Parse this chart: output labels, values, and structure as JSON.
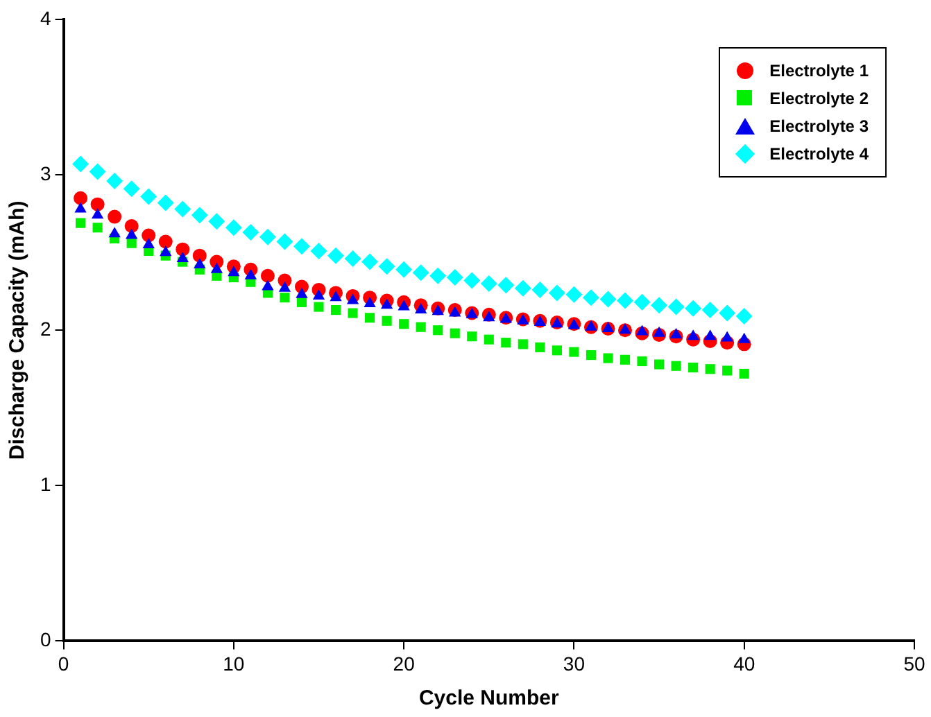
{
  "chart_data": {
    "type": "scatter",
    "xlabel": "Cycle Number",
    "ylabel": "Discharge Capacity (mAh)",
    "x": [
      1,
      2,
      3,
      4,
      5,
      6,
      7,
      8,
      9,
      10,
      11,
      12,
      13,
      14,
      15,
      16,
      17,
      18,
      19,
      20,
      21,
      22,
      23,
      24,
      25,
      26,
      27,
      28,
      29,
      30,
      31,
      32,
      33,
      34,
      35,
      36,
      37,
      38,
      39,
      40
    ],
    "xlim": [
      0,
      50
    ],
    "xticks": [
      0,
      10,
      20,
      30,
      40,
      50
    ],
    "ylim": [
      0,
      4
    ],
    "yticks": [
      0,
      1,
      2,
      3,
      4
    ],
    "grid": false,
    "legend": "top right",
    "series": [
      {
        "name": "Electrolyte 1",
        "color": "#ff0000",
        "marker": "circle",
        "values": [
          2.85,
          2.81,
          2.73,
          2.67,
          2.61,
          2.57,
          2.52,
          2.48,
          2.44,
          2.41,
          2.39,
          2.35,
          2.32,
          2.28,
          2.26,
          2.24,
          2.22,
          2.21,
          2.19,
          2.18,
          2.16,
          2.14,
          2.13,
          2.11,
          2.1,
          2.08,
          2.07,
          2.06,
          2.05,
          2.04,
          2.02,
          2.01,
          2.0,
          1.98,
          1.97,
          1.96,
          1.94,
          1.93,
          1.92,
          1.91
        ]
      },
      {
        "name": "Electrolyte 2",
        "color": "#00ee00",
        "marker": "square",
        "values": [
          2.69,
          2.66,
          2.59,
          2.56,
          2.51,
          2.48,
          2.44,
          2.39,
          2.35,
          2.34,
          2.31,
          2.24,
          2.21,
          2.18,
          2.15,
          2.13,
          2.11,
          2.08,
          2.06,
          2.04,
          2.02,
          2.0,
          1.98,
          1.96,
          1.94,
          1.92,
          1.91,
          1.89,
          1.87,
          1.86,
          1.84,
          1.82,
          1.81,
          1.8,
          1.78,
          1.77,
          1.76,
          1.75,
          1.74,
          1.72
        ]
      },
      {
        "name": "Electrolyte 3",
        "color": "#0000ee",
        "marker": "triangle",
        "values": [
          2.78,
          2.74,
          2.62,
          2.61,
          2.55,
          2.5,
          2.46,
          2.42,
          2.39,
          2.37,
          2.35,
          2.28,
          2.27,
          2.23,
          2.22,
          2.21,
          2.19,
          2.17,
          2.16,
          2.15,
          2.13,
          2.12,
          2.11,
          2.1,
          2.08,
          2.07,
          2.06,
          2.05,
          2.04,
          2.03,
          2.02,
          2.01,
          2.0,
          1.99,
          1.98,
          1.97,
          1.96,
          1.96,
          1.95,
          1.94
        ]
      },
      {
        "name": "Electrolyte 4",
        "color": "#00ffff",
        "marker": "diamond",
        "values": [
          3.07,
          3.02,
          2.96,
          2.91,
          2.86,
          2.82,
          2.78,
          2.74,
          2.7,
          2.66,
          2.63,
          2.6,
          2.57,
          2.54,
          2.51,
          2.48,
          2.46,
          2.44,
          2.41,
          2.39,
          2.37,
          2.35,
          2.34,
          2.32,
          2.3,
          2.29,
          2.27,
          2.26,
          2.24,
          2.23,
          2.21,
          2.2,
          2.19,
          2.18,
          2.16,
          2.15,
          2.14,
          2.13,
          2.11,
          2.09
        ]
      }
    ]
  }
}
